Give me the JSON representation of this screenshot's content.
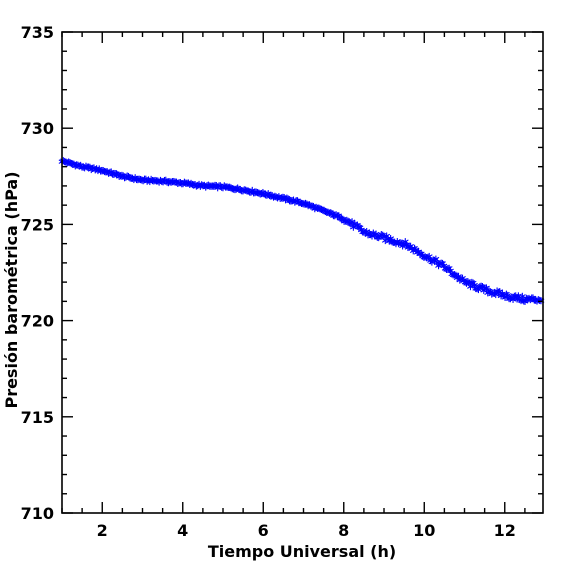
{
  "chart_data": {
    "type": "scatter",
    "title": "",
    "xlabel": "Tiempo Universal (h)",
    "ylabel": "Presión barométrica (hPa)",
    "xlim": [
      1,
      12.95
    ],
    "ylim": [
      710,
      735
    ],
    "x_ticks": [
      2,
      4,
      6,
      8,
      10,
      12
    ],
    "x_tick_labels": [
      "2",
      "4",
      "6",
      "8",
      "10",
      "12"
    ],
    "y_ticks": [
      710,
      715,
      720,
      725,
      730,
      735
    ],
    "y_tick_labels": [
      "710",
      "715",
      "720",
      "725",
      "730",
      "735"
    ],
    "x_minor_step": 0.5,
    "y_minor_step": 1,
    "grid": false,
    "legend": "none",
    "marker": "asterisk",
    "color": "#0000ff",
    "series": [
      {
        "x": [
          1.0,
          1.5,
          2.0,
          2.5,
          3.0,
          3.5,
          4.0,
          4.5,
          5.0,
          5.5,
          6.0,
          6.5,
          7.0,
          7.5,
          8.0,
          8.5,
          9.0,
          9.5,
          10.0,
          10.5,
          11.0,
          11.5,
          12.0,
          12.5,
          12.9
        ],
        "y": [
          728.3,
          728.0,
          727.8,
          727.5,
          727.3,
          727.25,
          727.15,
          727.0,
          726.95,
          726.8,
          726.6,
          726.35,
          726.1,
          725.7,
          725.3,
          724.6,
          724.3,
          724.0,
          723.4,
          722.8,
          722.0,
          721.6,
          721.3,
          721.1,
          721.1
        ]
      }
    ]
  }
}
